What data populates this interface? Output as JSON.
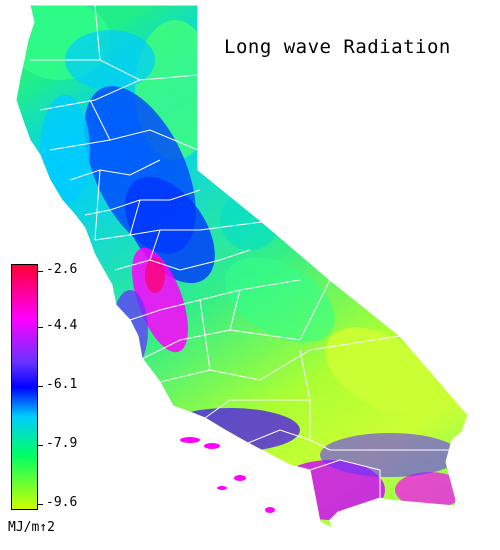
{
  "title": "Long wave Radiation",
  "legend": {
    "unit": "MJ/m↑2",
    "ticks": [
      "-2.6",
      "-4.4",
      "-6.1",
      "-7.9",
      "-9.6"
    ],
    "colors": [
      "#ff0033",
      "#ff00ff",
      "#6633ff",
      "#0000ff",
      "#00ccff",
      "#00ff66",
      "#33ff00",
      "#ccff00"
    ]
  },
  "map_colors": {
    "north_coast": "#33ff99",
    "north_interior": "#00ddff",
    "sierra": "#0033ff",
    "central_valley_south": "#ff00ff",
    "desert": "#ccff33",
    "south_coast": "#9900ff",
    "boundaries": "#ffffff"
  }
}
